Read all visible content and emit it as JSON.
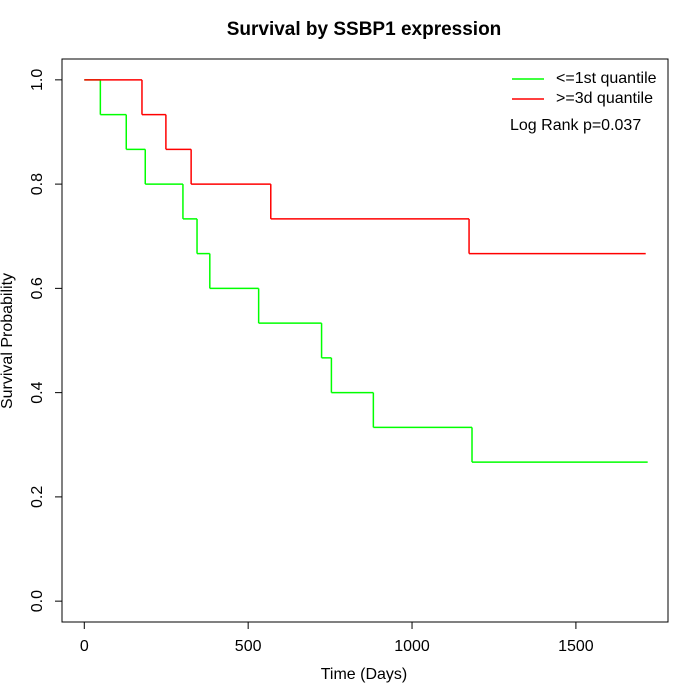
{
  "chart_data": {
    "type": "step",
    "title": "Survival by SSBP1 expression",
    "x_label": "Time (Days)",
    "y_label": "Survival Probability",
    "annotation": "Log Rank p=0.037",
    "legend": "top-right",
    "xlim": [
      -68,
      1781
    ],
    "ylim": [
      -0.04,
      1.04
    ],
    "xticks": [
      0,
      500,
      1000,
      1500
    ],
    "yticks": [
      {
        "value": 0,
        "label": "0.0"
      },
      0.2,
      0.4,
      0.6,
      0.8,
      {
        "value": 1,
        "label": "1.0"
      }
    ],
    "series": [
      {
        "name": "<=1st quantile",
        "color": "#00ff00",
        "x": [
          0,
          49,
          128,
          186,
          301,
          344,
          383,
          532,
          724,
          754,
          882,
          1183,
          1719
        ],
        "values": [
          1,
          0.9333,
          0.8667,
          0.8,
          0.7333,
          0.6667,
          0.6,
          0.5333,
          0.4667,
          0.4,
          0.3333,
          0.2667,
          0.2667
        ]
      },
      {
        "name": ">=3d quantile",
        "color": "#ff0000",
        "x": [
          0,
          176,
          249,
          326,
          569,
          1174,
          1713
        ],
        "values": [
          1,
          0.9333,
          0.8667,
          0.8,
          0.7333,
          0.6667,
          0.6667
        ]
      }
    ]
  }
}
